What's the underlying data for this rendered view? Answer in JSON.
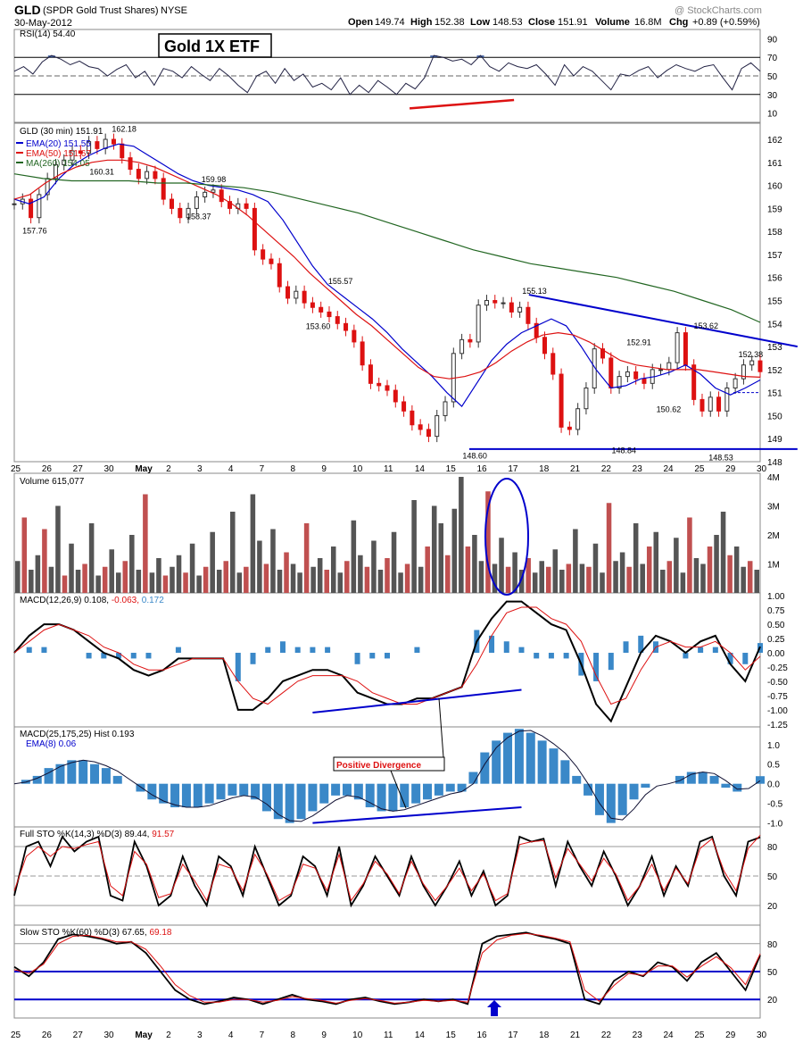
{
  "header": {
    "symbol": "GLD",
    "name": "(SPDR Gold Trust Shares)",
    "exchange": "NYSE",
    "date": "30-May-2012",
    "open_label": "Open",
    "open": "149.74",
    "high_label": "High",
    "high": "152.38",
    "low_label": "Low",
    "low": "148.53",
    "close_label": "Close",
    "close": "151.91",
    "volume_label": "Volume",
    "volume": "16.8M",
    "chg_label": "Chg",
    "chg": "+0.89 (+0.59%)",
    "watermark": "@ StockCharts.com",
    "banner": "Gold 1X ETF"
  },
  "colors": {
    "blue": "#0000cc",
    "red": "#dd1111",
    "green": "#226622",
    "gray": "#555555",
    "hist": "#3a88c8",
    "rsi_fill": "#3f5f9f"
  },
  "chart_data": [
    {
      "type": "line",
      "panel": "rsi",
      "label": "RSI(14) 54.40",
      "ylim": [
        0,
        100
      ],
      "ticks": [
        10,
        30,
        50,
        70,
        90
      ],
      "reference_lines": [
        30,
        50,
        70
      ],
      "values": [
        55,
        60,
        52,
        65,
        72,
        68,
        62,
        66,
        60,
        58,
        50,
        57,
        62,
        48,
        55,
        40,
        58,
        55,
        48,
        60,
        52,
        45,
        58,
        50,
        40,
        32,
        50,
        55,
        42,
        58,
        45,
        52,
        38,
        42,
        35,
        48,
        30,
        40,
        32,
        45,
        38,
        30,
        42,
        36,
        48,
        72,
        70,
        66,
        68,
        62,
        72,
        60,
        55,
        64,
        60,
        58,
        62,
        52,
        40,
        62,
        50,
        60,
        55,
        45,
        35,
        52,
        50,
        56,
        60,
        48,
        56,
        62,
        58,
        55,
        60,
        62,
        48,
        35,
        58,
        64,
        55
      ],
      "annotation_line": {
        "from": [
          0.53,
          15
        ],
        "to": [
          0.67,
          24
        ],
        "color": "red"
      }
    },
    {
      "type": "line",
      "panel": "price",
      "title": "GLD (30 min) 151.91",
      "ylim": [
        148,
        162.7
      ],
      "ticks": [
        148,
        149,
        150,
        151,
        152,
        153,
        154,
        155,
        156,
        157,
        158,
        159,
        160,
        161,
        162
      ],
      "x_tick_labels": [
        "25",
        "26",
        "27",
        "30",
        "May",
        "2",
        "3",
        "4",
        "7",
        "8",
        "9",
        "10",
        "11",
        "14",
        "15",
        "16",
        "17",
        "18",
        "21",
        "22",
        "23",
        "24",
        "25",
        "29",
        "30"
      ],
      "series": [
        {
          "name": "EMA(20) 151.55",
          "color": "blue",
          "values": [
            159.4,
            159.2,
            159.5,
            160.3,
            160.9,
            161.3,
            161.6,
            161.8,
            161.7,
            161.3,
            160.9,
            160.5,
            160.2,
            160.0,
            159.9,
            159.8,
            159.6,
            159.3,
            158.5,
            157.5,
            156.5,
            155.7,
            155.2,
            154.7,
            154.2,
            153.6,
            152.9,
            152.3,
            151.7,
            151.0,
            150.4,
            151.4,
            152.4,
            153.1,
            153.6,
            153.9,
            154.2,
            153.9,
            153.0,
            152.0,
            151.2,
            151.3,
            151.6,
            151.7,
            151.9,
            152.2,
            151.8,
            151.2,
            150.9,
            151.2,
            151.55
          ]
        },
        {
          "name": "EMA(50) 151.67",
          "color": "red",
          "values": [
            159.4,
            159.6,
            160.1,
            160.5,
            160.8,
            161.0,
            161.1,
            161.1,
            161.0,
            160.8,
            160.5,
            160.2,
            159.9,
            159.6,
            159.2,
            158.7,
            158.1,
            157.5,
            156.9,
            156.2,
            155.6,
            155.0,
            154.4,
            153.9,
            153.3,
            152.7,
            152.1,
            151.7,
            151.6,
            151.7,
            151.9,
            152.3,
            152.8,
            153.2,
            153.5,
            153.6,
            153.5,
            153.2,
            152.8,
            152.4,
            152.2,
            152.1,
            152.0,
            152.0,
            152.0,
            151.9,
            151.8,
            151.7,
            151.67
          ]
        },
        {
          "name": "MA(260) 154.05",
          "color": "green",
          "values": [
            160.5,
            160.3,
            160.2,
            160.2,
            160.2,
            160.1,
            160.1,
            160.0,
            159.9,
            159.7,
            159.4,
            159.1,
            158.8,
            158.4,
            158.0,
            157.6,
            157.2,
            156.9,
            156.6,
            156.4,
            156.2,
            156.0,
            155.7,
            155.4,
            155.0,
            154.6,
            154.05
          ]
        }
      ],
      "candles_close": [
        159.2,
        159.4,
        158.6,
        159.6,
        160.3,
        160.9,
        161.1,
        161.5,
        161.4,
        161.9,
        161.6,
        162.0,
        161.8,
        161.2,
        160.7,
        160.3,
        160.6,
        160.3,
        159.4,
        159.0,
        158.6,
        159.0,
        159.5,
        159.7,
        159.8,
        159.3,
        159.0,
        159.2,
        159.0,
        157.2,
        156.8,
        156.6,
        155.6,
        155.1,
        155.4,
        154.9,
        154.7,
        154.5,
        154.3,
        154.0,
        153.7,
        153.2,
        152.2,
        151.4,
        151.3,
        151.1,
        150.6,
        150.2,
        149.6,
        149.4,
        149.1,
        150.0,
        150.6,
        152.7,
        153.3,
        153.2,
        154.8,
        155.0,
        154.9,
        154.9,
        154.5,
        154.7,
        154.0,
        153.4,
        152.7,
        151.8,
        149.5,
        149.4,
        150.3,
        151.2,
        152.9,
        152.5,
        151.2,
        151.7,
        151.9,
        151.6,
        151.4,
        152.0,
        152.0,
        152.3,
        153.6,
        152.2,
        150.7,
        150.2,
        150.8,
        150.2,
        151.2,
        151.6,
        152.2,
        152.38,
        151.91
      ],
      "price_labels": [
        {
          "text": "157.76",
          "x": 0.03,
          "y": 157.76
        },
        {
          "text": "160.31",
          "x": 0.12,
          "y": 160.31
        },
        {
          "text": "162.18",
          "x": 0.15,
          "y": 162.18
        },
        {
          "text": "158.37",
          "x": 0.25,
          "y": 158.37
        },
        {
          "text": "159.98",
          "x": 0.27,
          "y": 159.98
        },
        {
          "text": "155.57",
          "x": 0.44,
          "y": 155.57
        },
        {
          "text": "153.60",
          "x": 0.41,
          "y": 153.6
        },
        {
          "text": "148.60",
          "x": 0.62,
          "y": 148.6
        },
        {
          "text": "155.13",
          "x": 0.7,
          "y": 155.13
        },
        {
          "text": "148.84",
          "x": 0.82,
          "y": 148.84
        },
        {
          "text": "152.91",
          "x": 0.84,
          "y": 152.91
        },
        {
          "text": "150.62",
          "x": 0.88,
          "y": 150.62
        },
        {
          "text": "153.62",
          "x": 0.93,
          "y": 153.62
        },
        {
          "text": "148.53",
          "x": 0.95,
          "y": 148.53
        },
        {
          "text": "152.38",
          "x": 0.99,
          "y": 152.38
        }
      ],
      "trend_lines": [
        {
          "from": [
            0.69,
            155.25
          ],
          "to": [
            1.05,
            153.0
          ],
          "color": "blue"
        },
        {
          "from": [
            0.61,
            148.55
          ],
          "to": [
            1.05,
            148.55
          ],
          "color": "blue"
        }
      ],
      "current_price_line": 151.0
    },
    {
      "type": "bar",
      "panel": "volume",
      "label": "Volume 615,077",
      "ylim": [
        0,
        4000000
      ],
      "ticks": [
        "1M",
        "2M",
        "3M",
        "4M"
      ],
      "values": [
        1.1,
        2.6,
        0.8,
        1.3,
        2.2,
        0.9,
        3.0,
        0.6,
        1.7,
        0.8,
        1.0,
        2.4,
        0.6,
        0.9,
        1.5,
        0.7,
        1.1,
        2.0,
        0.8,
        3.4,
        0.7,
        1.2,
        0.6,
        0.9,
        1.3,
        0.7,
        1.7,
        0.6,
        0.9,
        2.1,
        0.8,
        1.1,
        2.8,
        0.7,
        0.9,
        3.4,
        1.8,
        1.0,
        2.2,
        0.8,
        1.4,
        1.0,
        0.7,
        2.4,
        0.9,
        1.2,
        0.8,
        1.6,
        0.7,
        1.1,
        2.5,
        1.3,
        0.9,
        1.8,
        0.8,
        1.2,
        2.1,
        0.7,
        1.0,
        3.2,
        0.9,
        1.6,
        3.0,
        2.4,
        1.3,
        2.9,
        4.0,
        1.6,
        2.0,
        1.1,
        3.5,
        1.0,
        1.9,
        0.9,
        1.4,
        0.8,
        1.2,
        0.7,
        1.1,
        0.9,
        1.5,
        0.8,
        1.0,
        2.2,
        1.0,
        0.9,
        1.7,
        0.7,
        3.1,
        1.1,
        1.4,
        0.9,
        2.4,
        1.0,
        1.6,
        2.1,
        0.8,
        1.1,
        1.9,
        0.7,
        2.6,
        1.2,
        1.0,
        1.6,
        2.0,
        2.8,
        1.3,
        1.6,
        0.9,
        1.1,
        0.8
      ],
      "values_unit": "millions",
      "annotation_ellipse": "blue ellipse around 17 May volume spike"
    },
    {
      "type": "line",
      "panel": "macd1",
      "label_main": "MACD(12,26,9)",
      "macd": "0.108",
      "signal": "-0.063",
      "hist": "0.172",
      "ylim": [
        -1.3,
        1.05
      ],
      "ticks": [
        "1.00",
        "0.75",
        "0.50",
        "0.25",
        "0.00",
        "-0.25",
        "-0.50",
        "-0.75",
        "-1.00",
        "-1.25"
      ],
      "macd_values": [
        0.0,
        0.3,
        0.5,
        0.5,
        0.4,
        0.2,
        0.0,
        -0.1,
        -0.3,
        -0.4,
        -0.3,
        -0.1,
        -0.1,
        -0.1,
        -0.1,
        -1.0,
        -1.0,
        -0.8,
        -0.5,
        -0.4,
        -0.3,
        -0.3,
        -0.4,
        -0.7,
        -0.8,
        -0.9,
        -0.9,
        -0.8,
        -0.8,
        -0.7,
        -0.6,
        0.2,
        0.6,
        0.9,
        0.9,
        0.7,
        0.5,
        0.4,
        -0.2,
        -0.9,
        -1.2,
        -0.6,
        0.0,
        0.3,
        0.2,
        0.0,
        0.2,
        0.3,
        -0.2,
        -0.5,
        0.108
      ],
      "signal_values": [
        0.0,
        0.2,
        0.4,
        0.5,
        0.4,
        0.3,
        0.1,
        0.0,
        -0.2,
        -0.3,
        -0.3,
        -0.2,
        -0.1,
        -0.1,
        -0.1,
        -0.5,
        -0.8,
        -0.9,
        -0.7,
        -0.5,
        -0.4,
        -0.4,
        -0.4,
        -0.5,
        -0.7,
        -0.8,
        -0.9,
        -0.9,
        -0.8,
        -0.7,
        -0.6,
        -0.2,
        0.3,
        0.7,
        0.8,
        0.8,
        0.6,
        0.5,
        0.2,
        -0.4,
        -0.9,
        -0.8,
        -0.3,
        0.1,
        0.2,
        0.1,
        0.1,
        0.2,
        0.0,
        -0.3,
        -0.063
      ],
      "divergence_line": {
        "from": [
          0.4,
          -1.05
        ],
        "to": [
          0.68,
          -0.65
        ]
      }
    },
    {
      "type": "bar",
      "panel": "macd2",
      "label": "MACD(25,175,25) Hist 0.193",
      "ema_label": "EMA(8) 0.06",
      "ylim": [
        -1.1,
        1.45
      ],
      "ticks": [
        "1.0",
        "0.5",
        "0.0",
        "-0.5",
        "-1.0"
      ],
      "hist_values": [
        0.0,
        0.1,
        0.2,
        0.4,
        0.5,
        0.6,
        0.6,
        0.5,
        0.4,
        0.2,
        0.0,
        -0.2,
        -0.4,
        -0.5,
        -0.6,
        -0.6,
        -0.6,
        -0.5,
        -0.4,
        -0.3,
        -0.3,
        -0.4,
        -0.7,
        -0.9,
        -1.0,
        -0.9,
        -0.7,
        -0.5,
        -0.3,
        -0.3,
        -0.4,
        -0.6,
        -0.7,
        -0.7,
        -0.6,
        -0.5,
        -0.4,
        -0.3,
        -0.2,
        -0.2,
        0.3,
        0.8,
        1.1,
        1.3,
        1.4,
        1.3,
        1.1,
        0.9,
        0.6,
        0.2,
        -0.3,
        -0.8,
        -1.0,
        -0.8,
        -0.4,
        -0.1,
        0.0,
        0.0,
        0.2,
        0.3,
        0.3,
        0.2,
        -0.1,
        -0.2,
        0.0,
        0.193
      ],
      "annotation": "Positive Divergence",
      "divergence_line": {
        "from": [
          0.4,
          -1.0
        ],
        "to": [
          0.68,
          -0.6
        ]
      }
    },
    {
      "type": "line",
      "panel": "fullsto",
      "label": "Full STO %K(14,3) %D(3) 89.44,",
      "d_value": "91.57",
      "ylim": [
        0,
        100
      ],
      "ticks": [
        20,
        50,
        80
      ],
      "k_values": [
        30,
        80,
        85,
        60,
        90,
        75,
        85,
        90,
        30,
        25,
        85,
        60,
        20,
        30,
        70,
        40,
        20,
        70,
        60,
        30,
        80,
        50,
        20,
        30,
        70,
        60,
        30,
        80,
        20,
        40,
        70,
        50,
        30,
        70,
        40,
        20,
        40,
        65,
        30,
        55,
        20,
        30,
        90,
        85,
        88,
        40,
        85,
        60,
        40,
        75,
        50,
        20,
        40,
        70,
        30,
        60,
        40,
        85,
        90,
        50,
        30,
        85,
        89.44
      ],
      "d_values": [
        35,
        70,
        80,
        70,
        80,
        78,
        82,
        85,
        40,
        30,
        75,
        62,
        28,
        32,
        62,
        45,
        25,
        62,
        58,
        35,
        72,
        52,
        25,
        32,
        62,
        58,
        35,
        72,
        25,
        42,
        65,
        52,
        32,
        65,
        42,
        25,
        40,
        58,
        35,
        52,
        25,
        32,
        82,
        85,
        86,
        48,
        78,
        62,
        45,
        68,
        52,
        25,
        40,
        62,
        35,
        58,
        42,
        78,
        88,
        55,
        35,
        78,
        91.57
      ]
    },
    {
      "type": "line",
      "panel": "slowsto",
      "label": "Slow STO %K(60) %D(3) 67.65,",
      "d_value": "69.18",
      "ylim": [
        0,
        100
      ],
      "ticks": [
        20,
        50,
        80
      ],
      "k_values": [
        55,
        45,
        60,
        85,
        90,
        88,
        85,
        80,
        82,
        70,
        50,
        30,
        20,
        15,
        18,
        22,
        20,
        15,
        20,
        25,
        20,
        18,
        15,
        20,
        22,
        18,
        15,
        17,
        20,
        18,
        20,
        15,
        80,
        88,
        90,
        92,
        88,
        85,
        80,
        20,
        15,
        40,
        50,
        45,
        60,
        55,
        40,
        60,
        70,
        50,
        30,
        67.65
      ],
      "d_values": [
        52,
        48,
        58,
        80,
        88,
        89,
        86,
        82,
        82,
        74,
        56,
        36,
        24,
        17,
        17,
        20,
        20,
        17,
        19,
        23,
        21,
        19,
        16,
        19,
        21,
        19,
        16,
        17,
        19,
        18,
        19,
        17,
        70,
        84,
        89,
        91,
        89,
        86,
        82,
        30,
        18,
        35,
        48,
        46,
        56,
        56,
        44,
        56,
        66,
        54,
        36,
        69.18
      ],
      "reference_lines": [
        20,
        50
      ],
      "signal_marker": "blue arrow at 17 May"
    }
  ],
  "axis_dates": [
    "25",
    "26",
    "27",
    "30",
    "May",
    "2",
    "3",
    "4",
    "7",
    "8",
    "9",
    "10",
    "11",
    "14",
    "15",
    "16",
    "17",
    "18",
    "21",
    "22",
    "23",
    "24",
    "25",
    "29",
    "30"
  ]
}
